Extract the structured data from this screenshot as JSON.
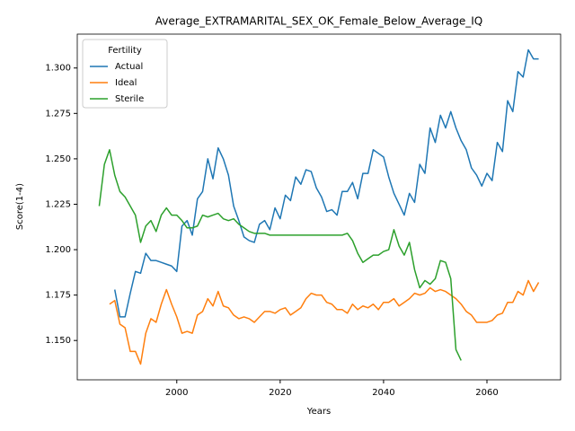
{
  "chart_data": {
    "type": "line",
    "title": "Average_EXTRAMARITAL_SEX_OK_Female_Below_Average_IQ",
    "x_label": "Years",
    "y_label": "Score(1-4)",
    "legend_title": "Fertility",
    "legend": "upper left",
    "grid": false,
    "x": [
      1985,
      1986,
      1987,
      1988,
      1989,
      1990,
      1991,
      1992,
      1993,
      1994,
      1995,
      1996,
      1997,
      1998,
      1999,
      2000,
      2001,
      2002,
      2003,
      2004,
      2005,
      2006,
      2007,
      2008,
      2009,
      2010,
      2011,
      2012,
      2013,
      2014,
      2015,
      2016,
      2017,
      2018,
      2019,
      2020,
      2021,
      2022,
      2023,
      2024,
      2025,
      2026,
      2027,
      2028,
      2029,
      2030,
      2031,
      2032,
      2033,
      2034,
      2035,
      2036,
      2037,
      2038,
      2039,
      2040,
      2041,
      2042,
      2043,
      2044,
      2045,
      2046,
      2047,
      2048,
      2049,
      2050,
      2051,
      2052,
      2053,
      2054,
      2055,
      2056,
      2057,
      2058,
      2059,
      2060,
      2061,
      2062,
      2063,
      2064,
      2065,
      2066,
      2067,
      2068,
      2069,
      2070
    ],
    "series": [
      {
        "name": "Actual",
        "color": "#1f77b4",
        "values": [
          null,
          null,
          null,
          1.178,
          1.163,
          1.163,
          1.176,
          1.188,
          1.187,
          1.198,
          1.194,
          1.194,
          1.193,
          1.192,
          1.191,
          1.188,
          1.213,
          1.216,
          1.208,
          1.228,
          1.232,
          1.25,
          1.239,
          1.256,
          1.25,
          1.241,
          1.224,
          1.216,
          1.207,
          1.205,
          1.204,
          1.214,
          1.216,
          1.211,
          1.223,
          1.217,
          1.23,
          1.227,
          1.24,
          1.236,
          1.244,
          1.243,
          1.234,
          1.229,
          1.221,
          1.222,
          1.219,
          1.232,
          1.232,
          1.237,
          1.228,
          1.242,
          1.242,
          1.255,
          1.253,
          1.251,
          1.24,
          1.231,
          1.225,
          1.219,
          1.231,
          1.226,
          1.247,
          1.242,
          1.267,
          1.259,
          1.274,
          1.267,
          1.276,
          1.267,
          1.26,
          1.255,
          1.245,
          1.241,
          1.235,
          1.242,
          1.238,
          1.259,
          1.254,
          1.282,
          1.276,
          1.298,
          1.295,
          1.31,
          1.305,
          1.305
        ]
      },
      {
        "name": "Ideal",
        "color": "#ff7f0e",
        "values": [
          null,
          null,
          1.17,
          1.172,
          1.159,
          1.157,
          1.144,
          1.144,
          1.137,
          1.154,
          1.162,
          1.16,
          1.17,
          1.178,
          1.17,
          1.163,
          1.154,
          1.155,
          1.154,
          1.164,
          1.166,
          1.173,
          1.169,
          1.177,
          1.169,
          1.168,
          1.164,
          1.162,
          1.163,
          1.162,
          1.16,
          1.163,
          1.166,
          1.166,
          1.165,
          1.167,
          1.168,
          1.164,
          1.166,
          1.168,
          1.173,
          1.176,
          1.175,
          1.175,
          1.171,
          1.17,
          1.167,
          1.167,
          1.165,
          1.17,
          1.167,
          1.169,
          1.168,
          1.17,
          1.167,
          1.171,
          1.171,
          1.173,
          1.169,
          1.171,
          1.173,
          1.176,
          1.175,
          1.176,
          1.179,
          1.177,
          1.178,
          1.177,
          1.175,
          1.173,
          1.17,
          1.166,
          1.164,
          1.16,
          1.16,
          1.16,
          1.161,
          1.164,
          1.165,
          1.171,
          1.171,
          1.177,
          1.175,
          1.183,
          1.177,
          1.182
        ]
      },
      {
        "name": "Sterile",
        "color": "#2ca02c",
        "values": [
          1.224,
          1.247,
          1.255,
          1.241,
          1.232,
          1.229,
          1.224,
          1.219,
          1.204,
          1.213,
          1.216,
          1.21,
          1.219,
          1.223,
          1.219,
          1.219,
          1.216,
          1.212,
          1.212,
          1.213,
          1.219,
          1.218,
          1.219,
          1.22,
          1.217,
          1.216,
          1.217,
          1.214,
          1.212,
          1.21,
          1.209,
          1.209,
          1.209,
          1.208,
          1.208,
          1.208,
          1.208,
          1.208,
          1.208,
          1.208,
          1.208,
          1.208,
          1.208,
          1.208,
          1.208,
          1.208,
          1.208,
          1.208,
          1.209,
          1.205,
          1.198,
          1.193,
          1.195,
          1.197,
          1.197,
          1.199,
          1.2,
          1.211,
          1.202,
          1.197,
          1.204,
          1.189,
          1.179,
          1.183,
          1.181,
          1.184,
          1.194,
          1.193,
          1.184,
          1.145,
          1.139,
          null,
          null,
          null,
          null,
          null,
          null,
          null,
          null,
          null,
          null,
          null,
          null,
          null,
          null,
          null
        ]
      }
    ],
    "xlim": [
      1980.75,
      2074.25
    ],
    "xticks": [
      2000,
      2020,
      2040,
      2060
    ],
    "ylim": [
      1.12835,
      1.31865
    ],
    "yticks": [
      {
        "value": 1.15,
        "label": "1.150"
      },
      {
        "value": 1.175,
        "label": "1.175"
      },
      {
        "value": 1.2,
        "label": "1.200"
      },
      {
        "value": 1.225,
        "label": "1.225"
      },
      {
        "value": 1.25,
        "label": "1.250"
      },
      {
        "value": 1.275,
        "label": "1.275"
      },
      {
        "value": 1.3,
        "label": "1.300"
      }
    ]
  }
}
